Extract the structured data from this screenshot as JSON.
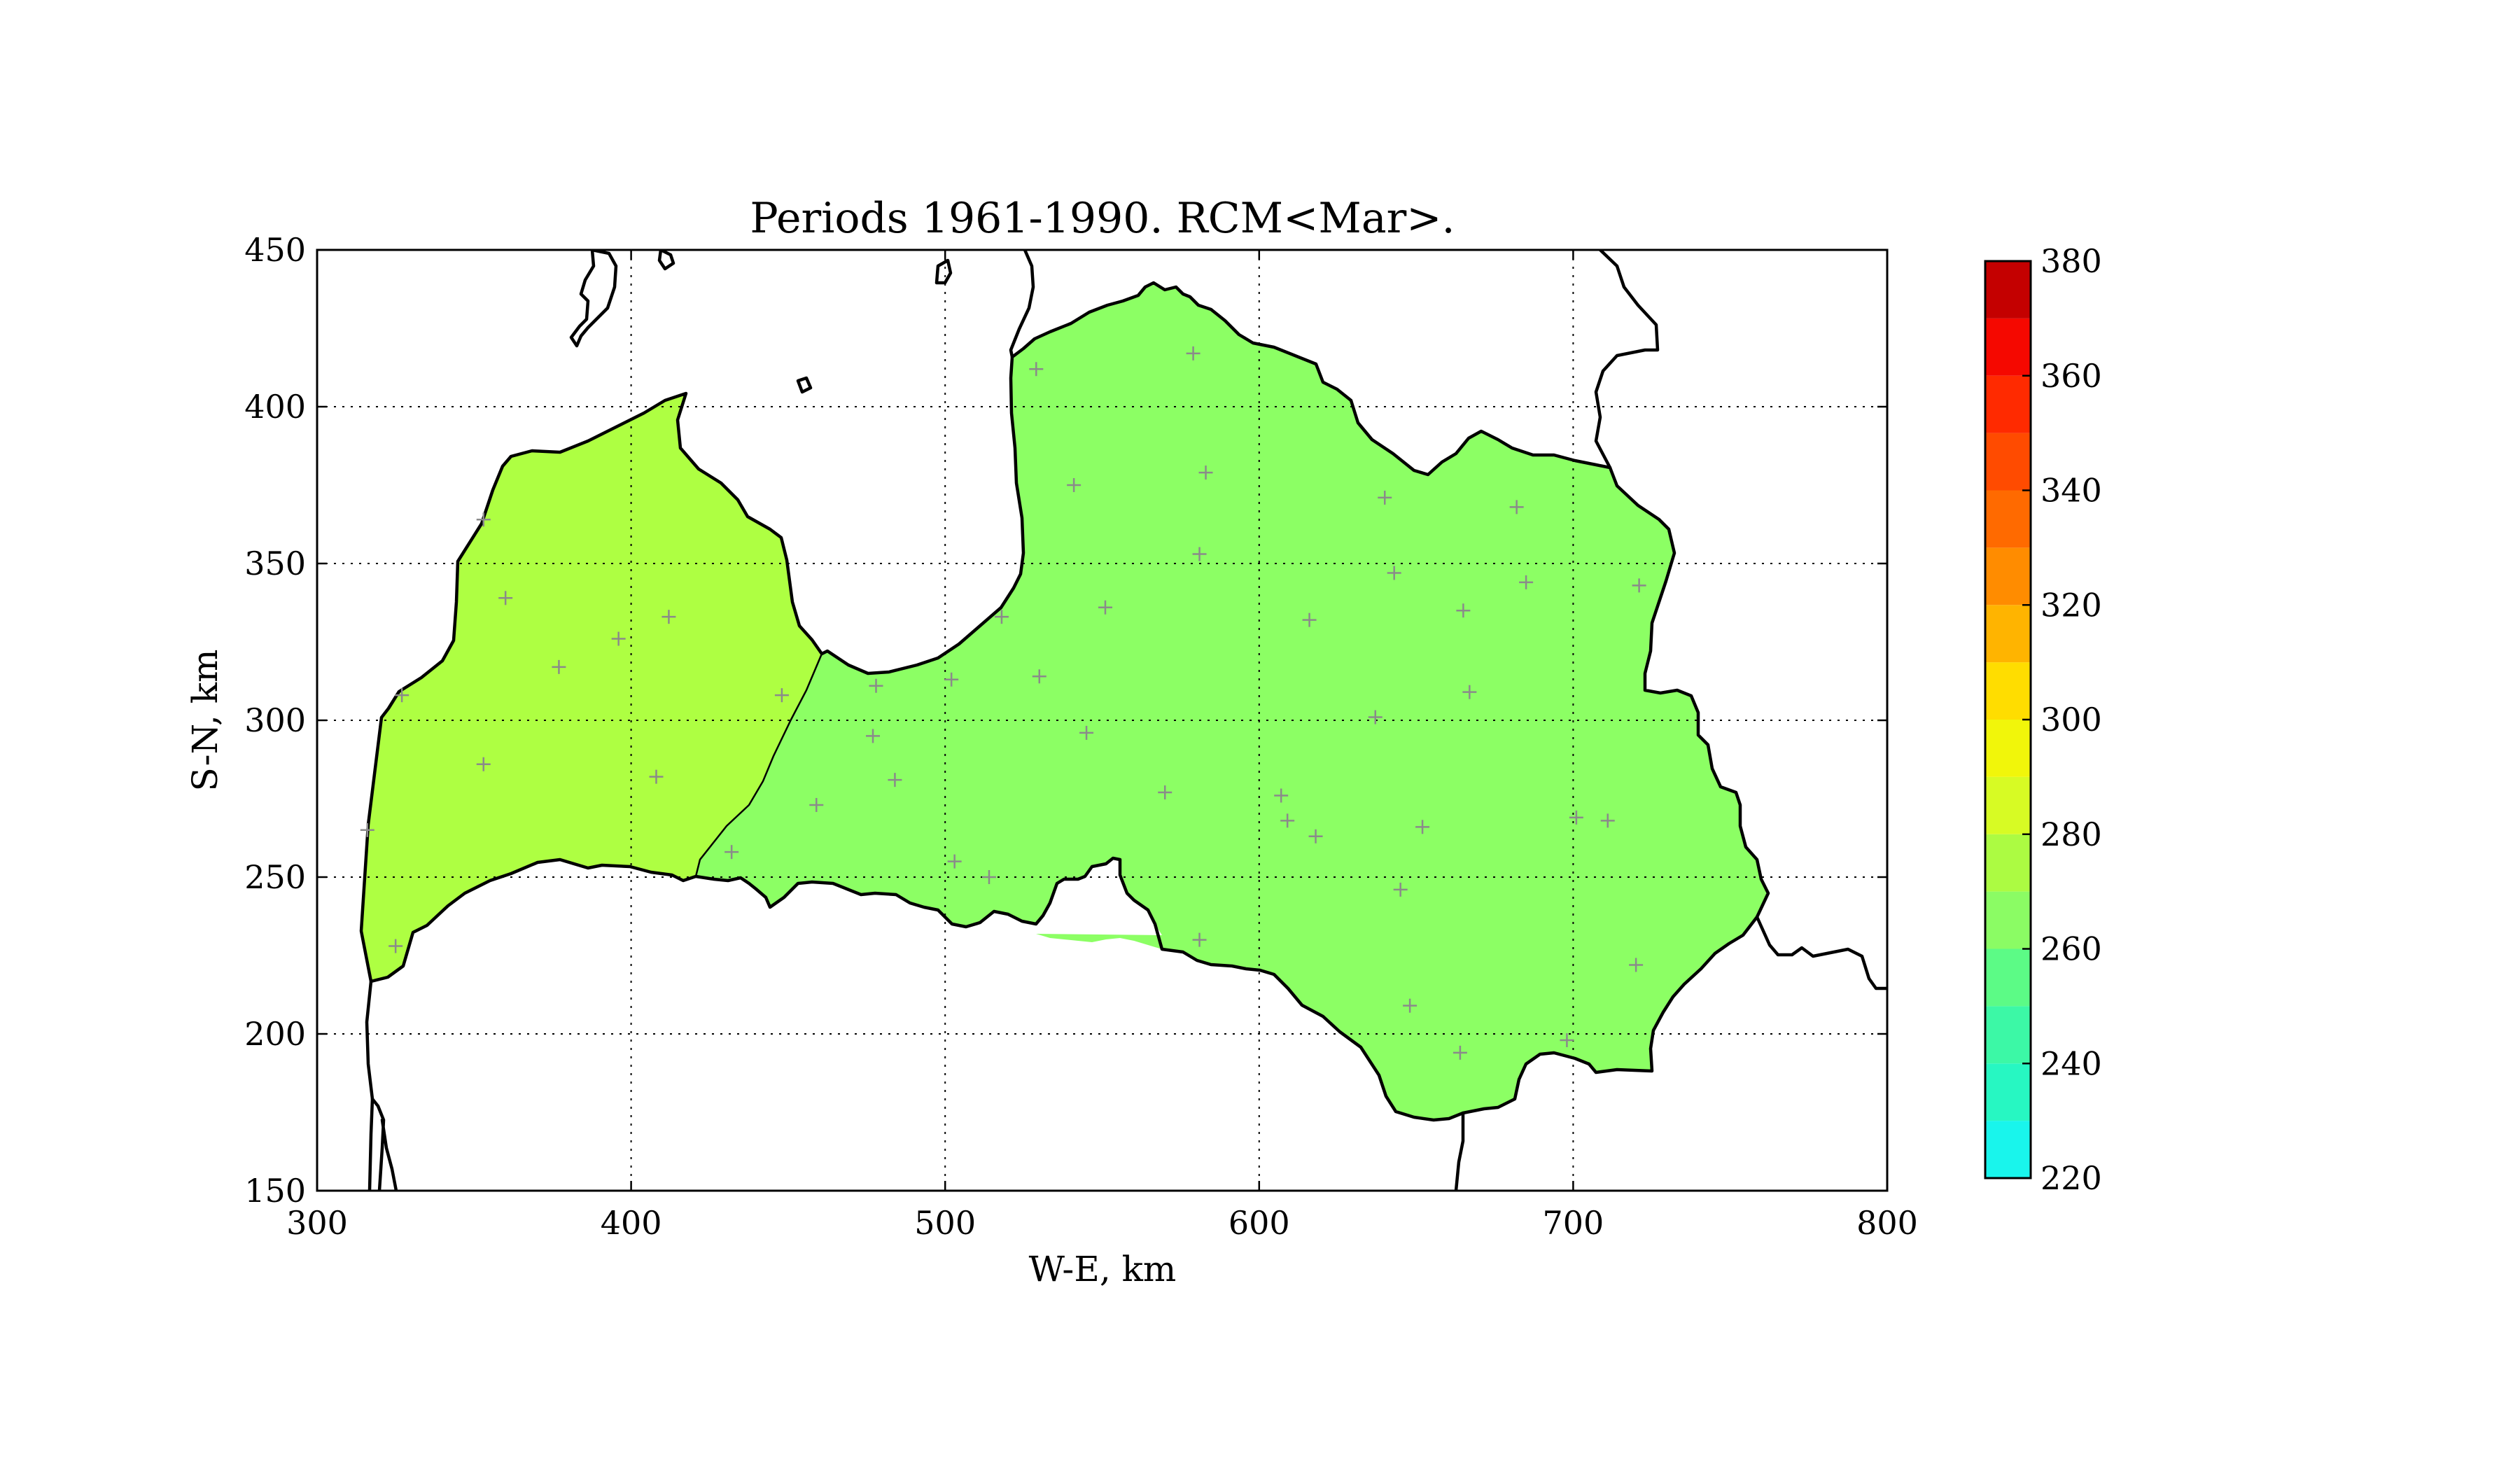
{
  "title": "Periods 1961-1990. RCM<Mar>.",
  "xlabel": "W-E, km",
  "ylabel": "S-N, km",
  "xlim": [
    300,
    800
  ],
  "ylim": [
    150,
    450
  ],
  "xticks": [
    300,
    400,
    500,
    600,
    700,
    800
  ],
  "yticks": [
    150,
    200,
    250,
    300,
    350,
    400,
    450
  ],
  "grid": true,
  "colorbar": {
    "min": 220,
    "max": 380,
    "step": 10,
    "tick_labels": [
      220,
      240,
      260,
      280,
      300,
      320,
      340,
      360,
      380
    ],
    "colors": [
      "#19f5ec",
      "#27f7c2",
      "#3cf8a6",
      "#5cfb86",
      "#8bfc64",
      "#acfb42",
      "#d7fb24",
      "#f1f60a",
      "#ffdd00",
      "#ffb400",
      "#ff8c00",
      "#ff6a00",
      "#ff4b00",
      "#ff2a00",
      "#f50800",
      "#c40000"
    ]
  },
  "regions": [
    {
      "name": "west",
      "value": 275,
      "color": "#aeff42"
    },
    {
      "name": "east",
      "value": 265,
      "color": "#8cff64"
    }
  ],
  "stations": [
    [
      316,
      265
    ],
    [
      325,
      228
    ],
    [
      327,
      308
    ],
    [
      353,
      364
    ],
    [
      353,
      286
    ],
    [
      360,
      339
    ],
    [
      377,
      317
    ],
    [
      396,
      326
    ],
    [
      408,
      282
    ],
    [
      412,
      333
    ],
    [
      432,
      258
    ],
    [
      448,
      308
    ],
    [
      459,
      273
    ],
    [
      477,
      295
    ],
    [
      478,
      311
    ],
    [
      484,
      281
    ],
    [
      502,
      313
    ],
    [
      503,
      255
    ],
    [
      514,
      250
    ],
    [
      518,
      333
    ],
    [
      529,
      412
    ],
    [
      530,
      314
    ],
    [
      541,
      375
    ],
    [
      545,
      296
    ],
    [
      551,
      336
    ],
    [
      570,
      277
    ],
    [
      579,
      417
    ],
    [
      581,
      230
    ],
    [
      581,
      353
    ],
    [
      583,
      379
    ],
    [
      607,
      276
    ],
    [
      609,
      268
    ],
    [
      616,
      332
    ],
    [
      618,
      263
    ],
    [
      637,
      301
    ],
    [
      640,
      371
    ],
    [
      643,
      347
    ],
    [
      645,
      246
    ],
    [
      648,
      209
    ],
    [
      652,
      266
    ],
    [
      664,
      194
    ],
    [
      665,
      335
    ],
    [
      667,
      309
    ],
    [
      682,
      368
    ],
    [
      685,
      344
    ],
    [
      698,
      198
    ],
    [
      701,
      269
    ],
    [
      711,
      268
    ],
    [
      720,
      222
    ],
    [
      721,
      343
    ]
  ]
}
